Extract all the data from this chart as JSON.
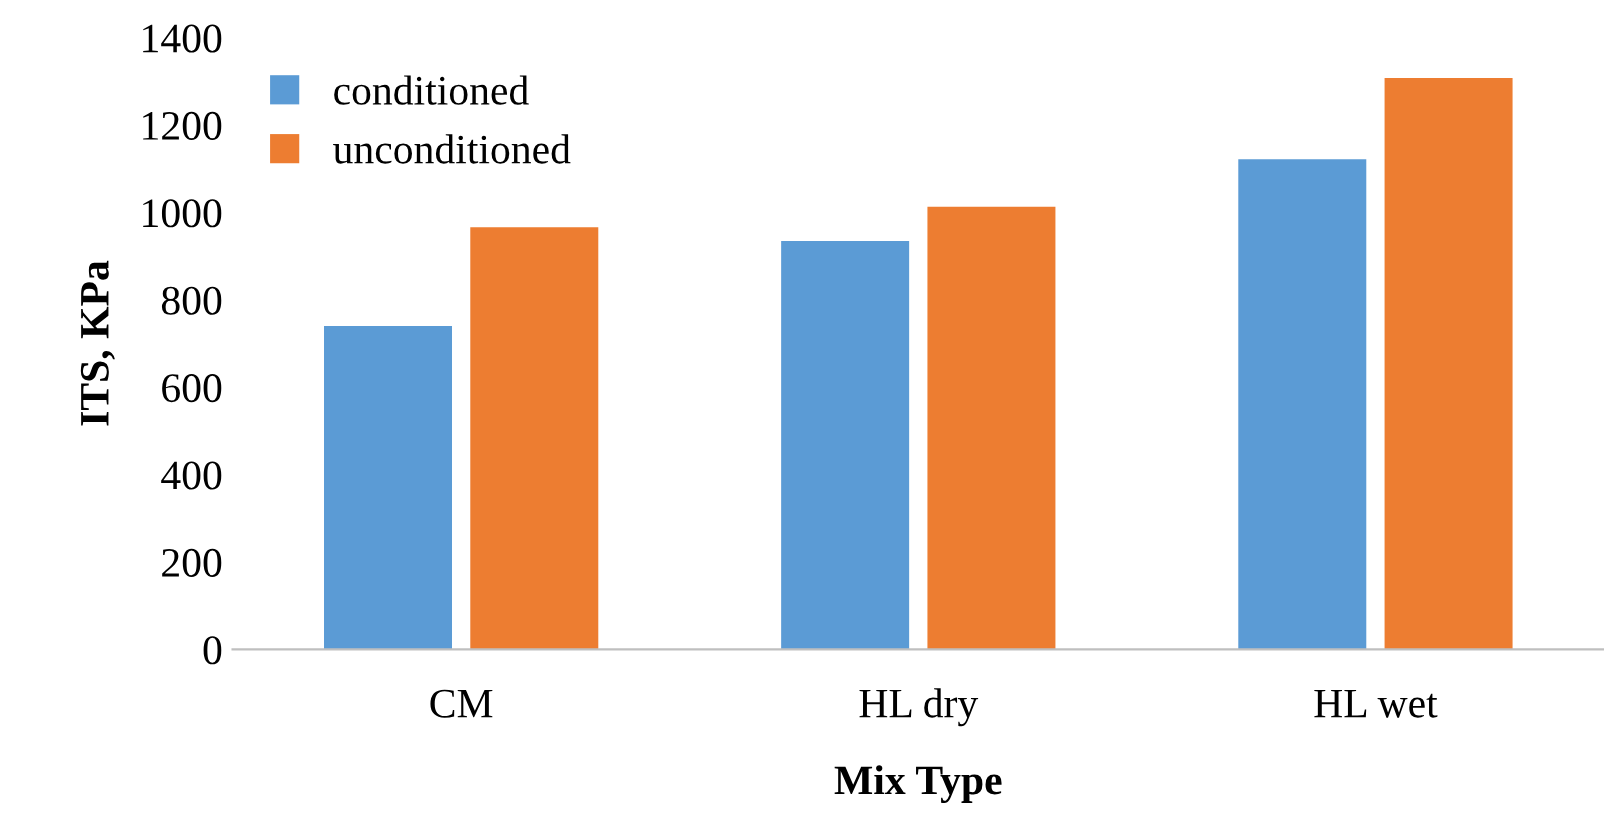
{
  "chart_data": {
    "type": "bar",
    "xlabel": "Mix Type",
    "ylabel": "ITS, KPa",
    "categories": [
      "CM",
      "HL dry",
      "HL wet"
    ],
    "series": [
      {
        "name": "conditioned",
        "color": "#5b9bd5",
        "values": [
          740,
          935,
          1122
        ]
      },
      {
        "name": "unconditioned",
        "color": "#ed7d31",
        "values": [
          966,
          1013,
          1308
        ]
      }
    ],
    "ylim": [
      0,
      1400
    ],
    "yticks": [
      0,
      200,
      400,
      600,
      800,
      1000,
      1200,
      1400
    ],
    "grid": false,
    "legend": "top left"
  }
}
